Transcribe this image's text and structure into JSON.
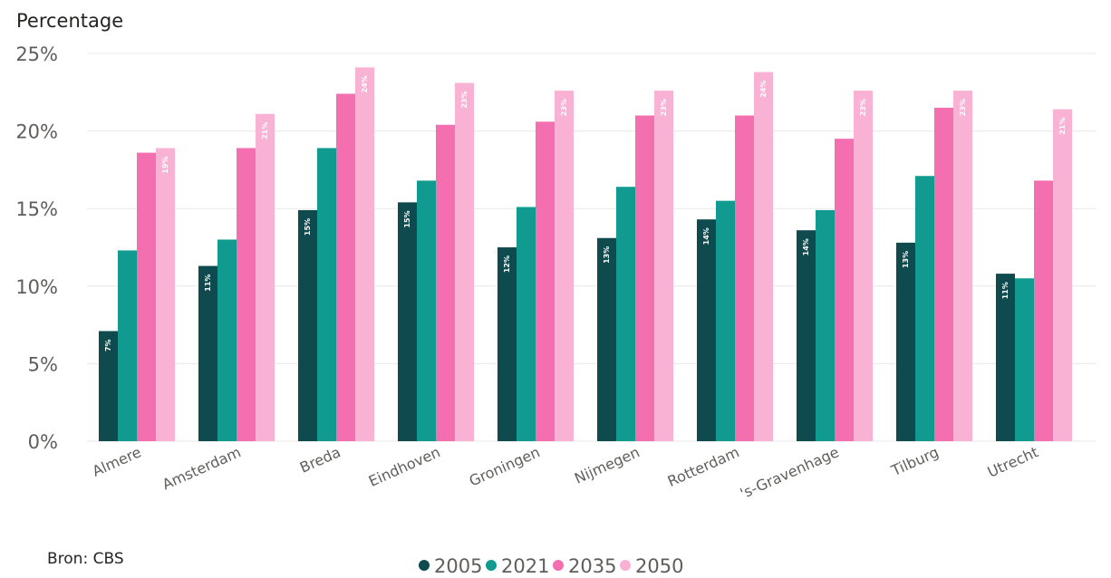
{
  "source_note": "Bron: CBS",
  "chart_data": {
    "type": "bar",
    "ylabel": "Percentage",
    "xlabel": "",
    "ylim": [
      0,
      25
    ],
    "yticks": [
      "0%",
      "5%",
      "10%",
      "15%",
      "20%",
      "25%"
    ],
    "grid": true,
    "legend_position": "bottom",
    "categories": [
      "Almere",
      "Amsterdam",
      "Breda",
      "Eindhoven",
      "Groningen",
      "Nijmegen",
      "Rotterdam",
      "'s-Gravenhage",
      "Tilburg",
      "Utrecht"
    ],
    "series": [
      {
        "name": "2005",
        "color": "#0f4a4e",
        "values": [
          7.1,
          11.3,
          14.9,
          15.4,
          12.5,
          13.1,
          14.3,
          13.6,
          12.8,
          10.8
        ],
        "labels": [
          "7%",
          "11%",
          "15%",
          "15%",
          "12%",
          "13%",
          "14%",
          "14%",
          "13%",
          "11%"
        ]
      },
      {
        "name": "2021",
        "color": "#119a90",
        "values": [
          12.3,
          13.0,
          18.9,
          16.8,
          15.1,
          16.4,
          15.5,
          14.9,
          17.1,
          10.5
        ],
        "labels": []
      },
      {
        "name": "2035",
        "color": "#f36fb0",
        "values": [
          18.6,
          18.9,
          22.4,
          20.4,
          20.6,
          21.0,
          21.0,
          19.5,
          21.5,
          16.8
        ],
        "labels": []
      },
      {
        "name": "2050",
        "color": "#f9b2d4",
        "values": [
          18.9,
          21.1,
          24.1,
          23.1,
          22.6,
          22.6,
          23.8,
          22.6,
          22.6,
          21.4
        ],
        "labels": [
          "19%",
          "21%",
          "24%",
          "23%",
          "23%",
          "23%",
          "24%",
          "23%",
          "23%",
          "21%"
        ]
      }
    ]
  }
}
